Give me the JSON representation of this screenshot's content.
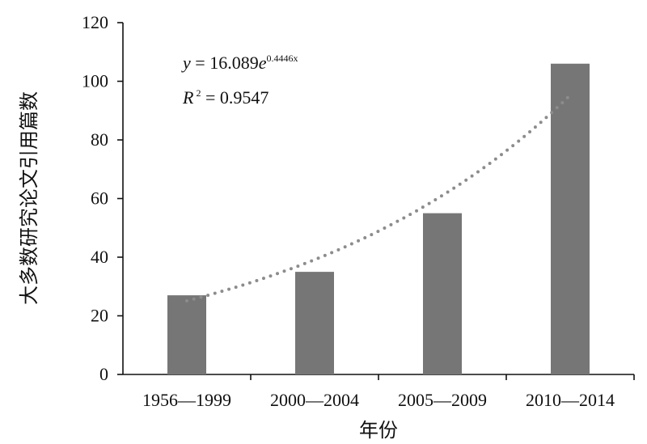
{
  "chart_data": {
    "type": "bar",
    "categories": [
      "1956—1999",
      "2000—2004",
      "2005—2009",
      "2010—2014"
    ],
    "values": [
      27,
      35,
      55,
      106
    ],
    "xlabel": "年份",
    "ylabel": "大多数研究论文引用篇数",
    "ylim": [
      0,
      120
    ],
    "yticks": [
      0,
      20,
      40,
      60,
      80,
      100,
      120
    ],
    "grid": false,
    "trendline": {
      "type": "exponential",
      "coefficient": 16.089,
      "exponent": 0.4446,
      "r_squared": 0.9547,
      "equation_y_var": "y",
      "equation_rhs": "16.089",
      "equation_base": "e",
      "equation_exponent": "0.4446x",
      "r2_symbol": "R",
      "r2_sup": "2",
      "r2_rhs": "0.9547"
    },
    "colors": {
      "bar": "#767676",
      "trendline": "#8c8c8c",
      "axis": "#111111"
    }
  }
}
